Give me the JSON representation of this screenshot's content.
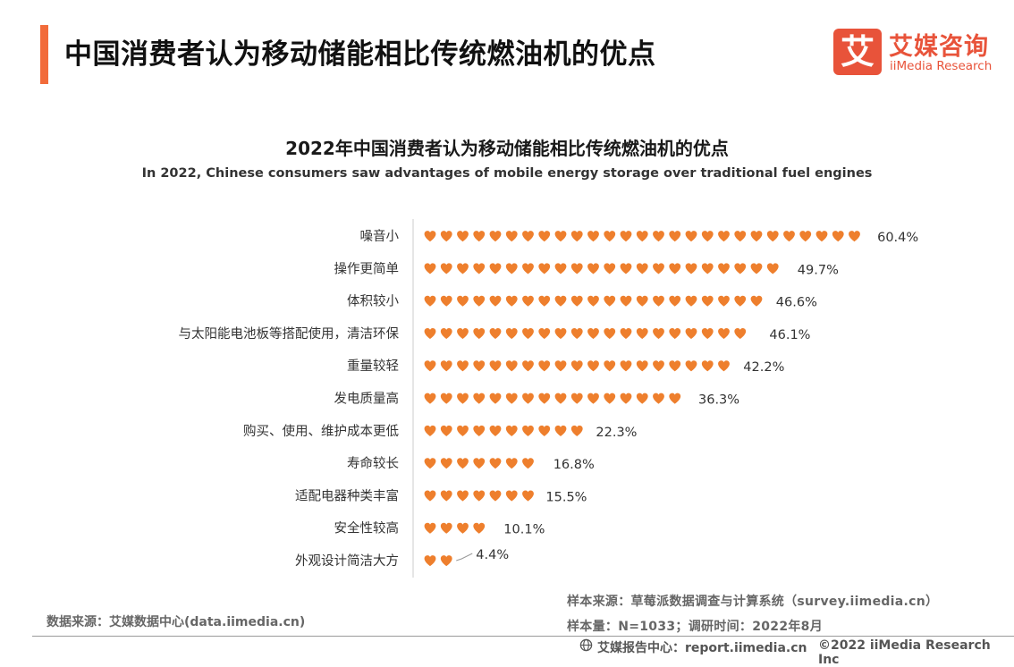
{
  "header": {
    "title": "中国消费者认为移动储能相比传统燃油机的优点",
    "accent_color": "#f26b3a"
  },
  "logo": {
    "mark": "艾",
    "name_cn": "艾媒咨询",
    "name_en": "iiMedia Research",
    "color": "#e8533a"
  },
  "chart_data": {
    "type": "bar",
    "style": "pictograph-hearts",
    "title": "2022年中国消费者认为移动储能相比传统燃油机的优点",
    "subtitle": "In 2022, Chinese consumers saw advantages of mobile energy storage over traditional fuel engines",
    "categories": [
      "噪音小",
      "操作更简单",
      "体积较小",
      "与太阳能电池板等搭配使用，清洁环保",
      "重量较轻",
      "发电质量高",
      "购买、使用、维护成本更低",
      "寿命较长",
      "适配电器种类丰富",
      "安全性较高",
      "外观设计简洁大方"
    ],
    "values": [
      60.4,
      49.7,
      46.6,
      46.1,
      42.2,
      36.3,
      22.3,
      16.8,
      15.5,
      10.1,
      4.4
    ],
    "value_labels": [
      "60.4%",
      "49.7%",
      "46.6%",
      "46.1%",
      "42.2%",
      "36.3%",
      "22.3%",
      "16.8%",
      "15.5%",
      "10.1%",
      "4.4%"
    ],
    "unit": "%",
    "percent_per_heart": 2.2,
    "heart_color": "#ee7f2d",
    "axis_color": "#cccccc",
    "xlabel": "",
    "ylabel": ""
  },
  "sources": {
    "left": "数据来源：艾媒数据中心(data.iimedia.cn)",
    "right_line1": "样本来源：草莓派数据调查与计算系统（survey.iimedia.cn）",
    "right_line2": "样本量：N=1033；调研时间：2022年8月"
  },
  "footer": {
    "report": "艾媒报告中心：report.iimedia.cn",
    "copyright": "©2022  iiMedia Research  Inc"
  }
}
